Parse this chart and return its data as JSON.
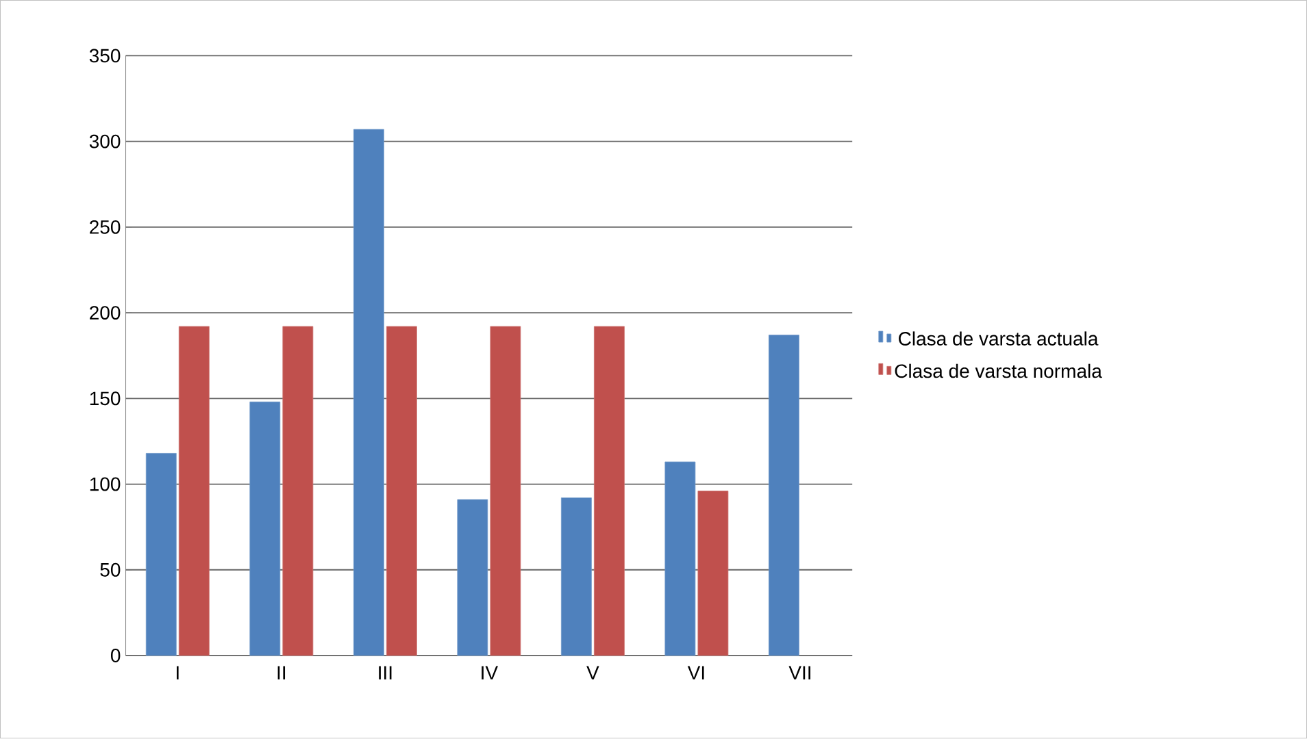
{
  "chart_data": {
    "type": "bar",
    "categories": [
      "I",
      "II",
      "III",
      "IV",
      "V",
      "VI",
      "VII"
    ],
    "series": [
      {
        "name": "Clasa de varsta actuala",
        "color": "#4f81bd",
        "values": [
          118,
          148,
          307,
          91,
          92,
          113,
          187
        ]
      },
      {
        "name": "Clasa de varsta normala",
        "color": "#c0504d",
        "values": [
          192,
          192,
          192,
          192,
          192,
          96,
          null
        ]
      }
    ],
    "ylim": [
      0,
      350
    ],
    "yticks": [
      0,
      50,
      100,
      150,
      200,
      250,
      300,
      350
    ],
    "grid": "y",
    "legend": "right"
  }
}
